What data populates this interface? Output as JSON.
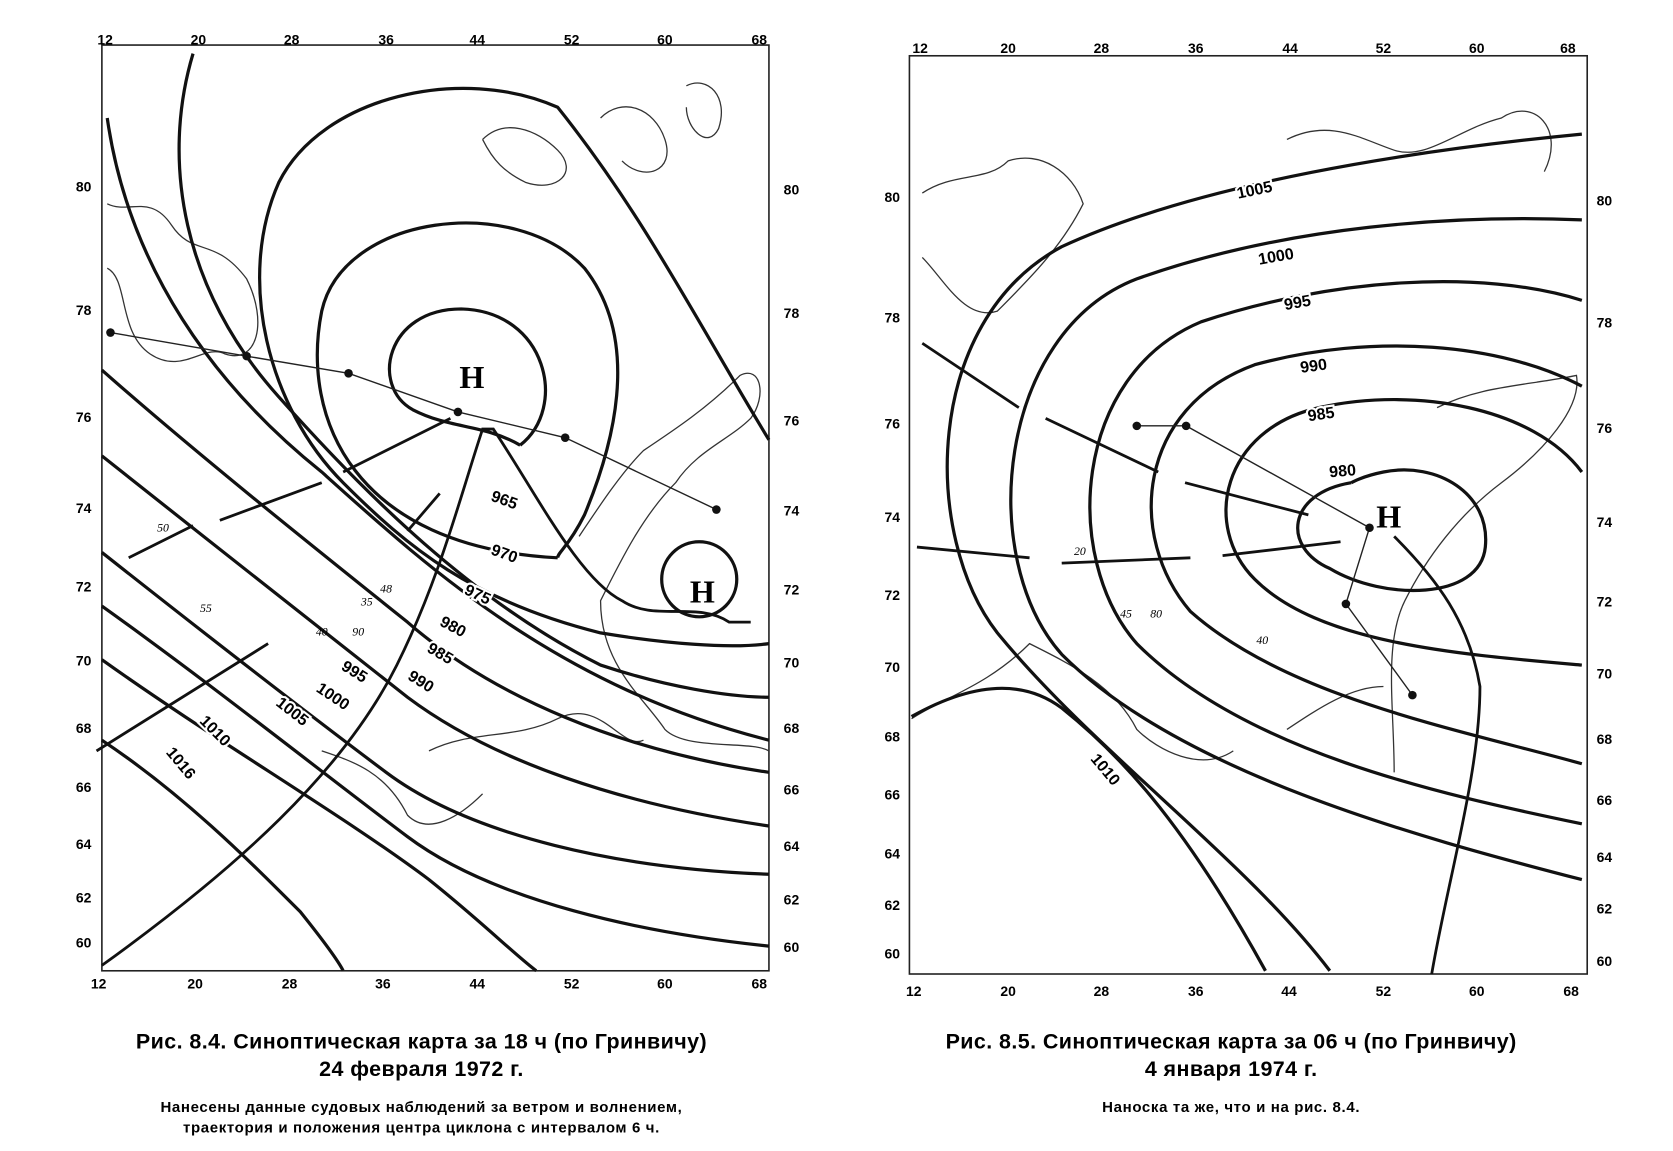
{
  "figures": [
    {
      "lon_top": [
        "12",
        "20",
        "28",
        "36",
        "44",
        "52",
        "60",
        "68"
      ],
      "lon_bottom": [
        "12",
        "20",
        "28",
        "36",
        "44",
        "52",
        "60",
        "68"
      ],
      "lat_left": [
        "80",
        "78",
        "76",
        "74",
        "72",
        "70",
        "68",
        "66",
        "64",
        "62",
        "60"
      ],
      "lat_right": [
        "80",
        "78",
        "76",
        "74",
        "72",
        "70",
        "68",
        "66",
        "64",
        "62",
        "60"
      ],
      "isobar_labels": [
        "965",
        "970",
        "975",
        "980",
        "985",
        "990",
        "995",
        "1000",
        "1005",
        "1010",
        "1016"
      ],
      "centers": [
        "Н",
        "Н"
      ],
      "wind_labels": [
        "50",
        "55",
        "48",
        "35",
        "40",
        "90"
      ],
      "caption_title": [
        "Рис. 8.4. Синоптическая карта за 18 ч (по Гринвичу)",
        "24 февраля 1972 г."
      ],
      "caption_note": [
        "Нанесены данные судовых наблюдений за ветром и волнением,",
        "траектория и положения центра циклона с интервалом 6 ч."
      ]
    },
    {
      "lon_top": [
        "12",
        "20",
        "28",
        "36",
        "44",
        "52",
        "60",
        "68"
      ],
      "lon_bottom": [
        "12",
        "20",
        "28",
        "36",
        "44",
        "52",
        "60",
        "68"
      ],
      "lat_left": [
        "80",
        "78",
        "76",
        "74",
        "72",
        "70",
        "68",
        "66",
        "64",
        "62",
        "60"
      ],
      "lat_right": [
        "80",
        "78",
        "76",
        "74",
        "72",
        "70",
        "68",
        "66",
        "64",
        "62",
        "60"
      ],
      "isobar_labels": [
        "1005",
        "1000",
        "995",
        "990",
        "985",
        "980",
        "1010"
      ],
      "centers": [
        "Н"
      ],
      "wind_labels": [
        "20",
        "45",
        "80",
        "40"
      ],
      "caption_title": [
        "Рис. 8.5. Синоптическая карта за 06 ч (по Гринвичу)",
        "4 января 1974 г."
      ],
      "caption_note": [
        "Наноска та же, что и на рис. 8.4."
      ]
    }
  ]
}
